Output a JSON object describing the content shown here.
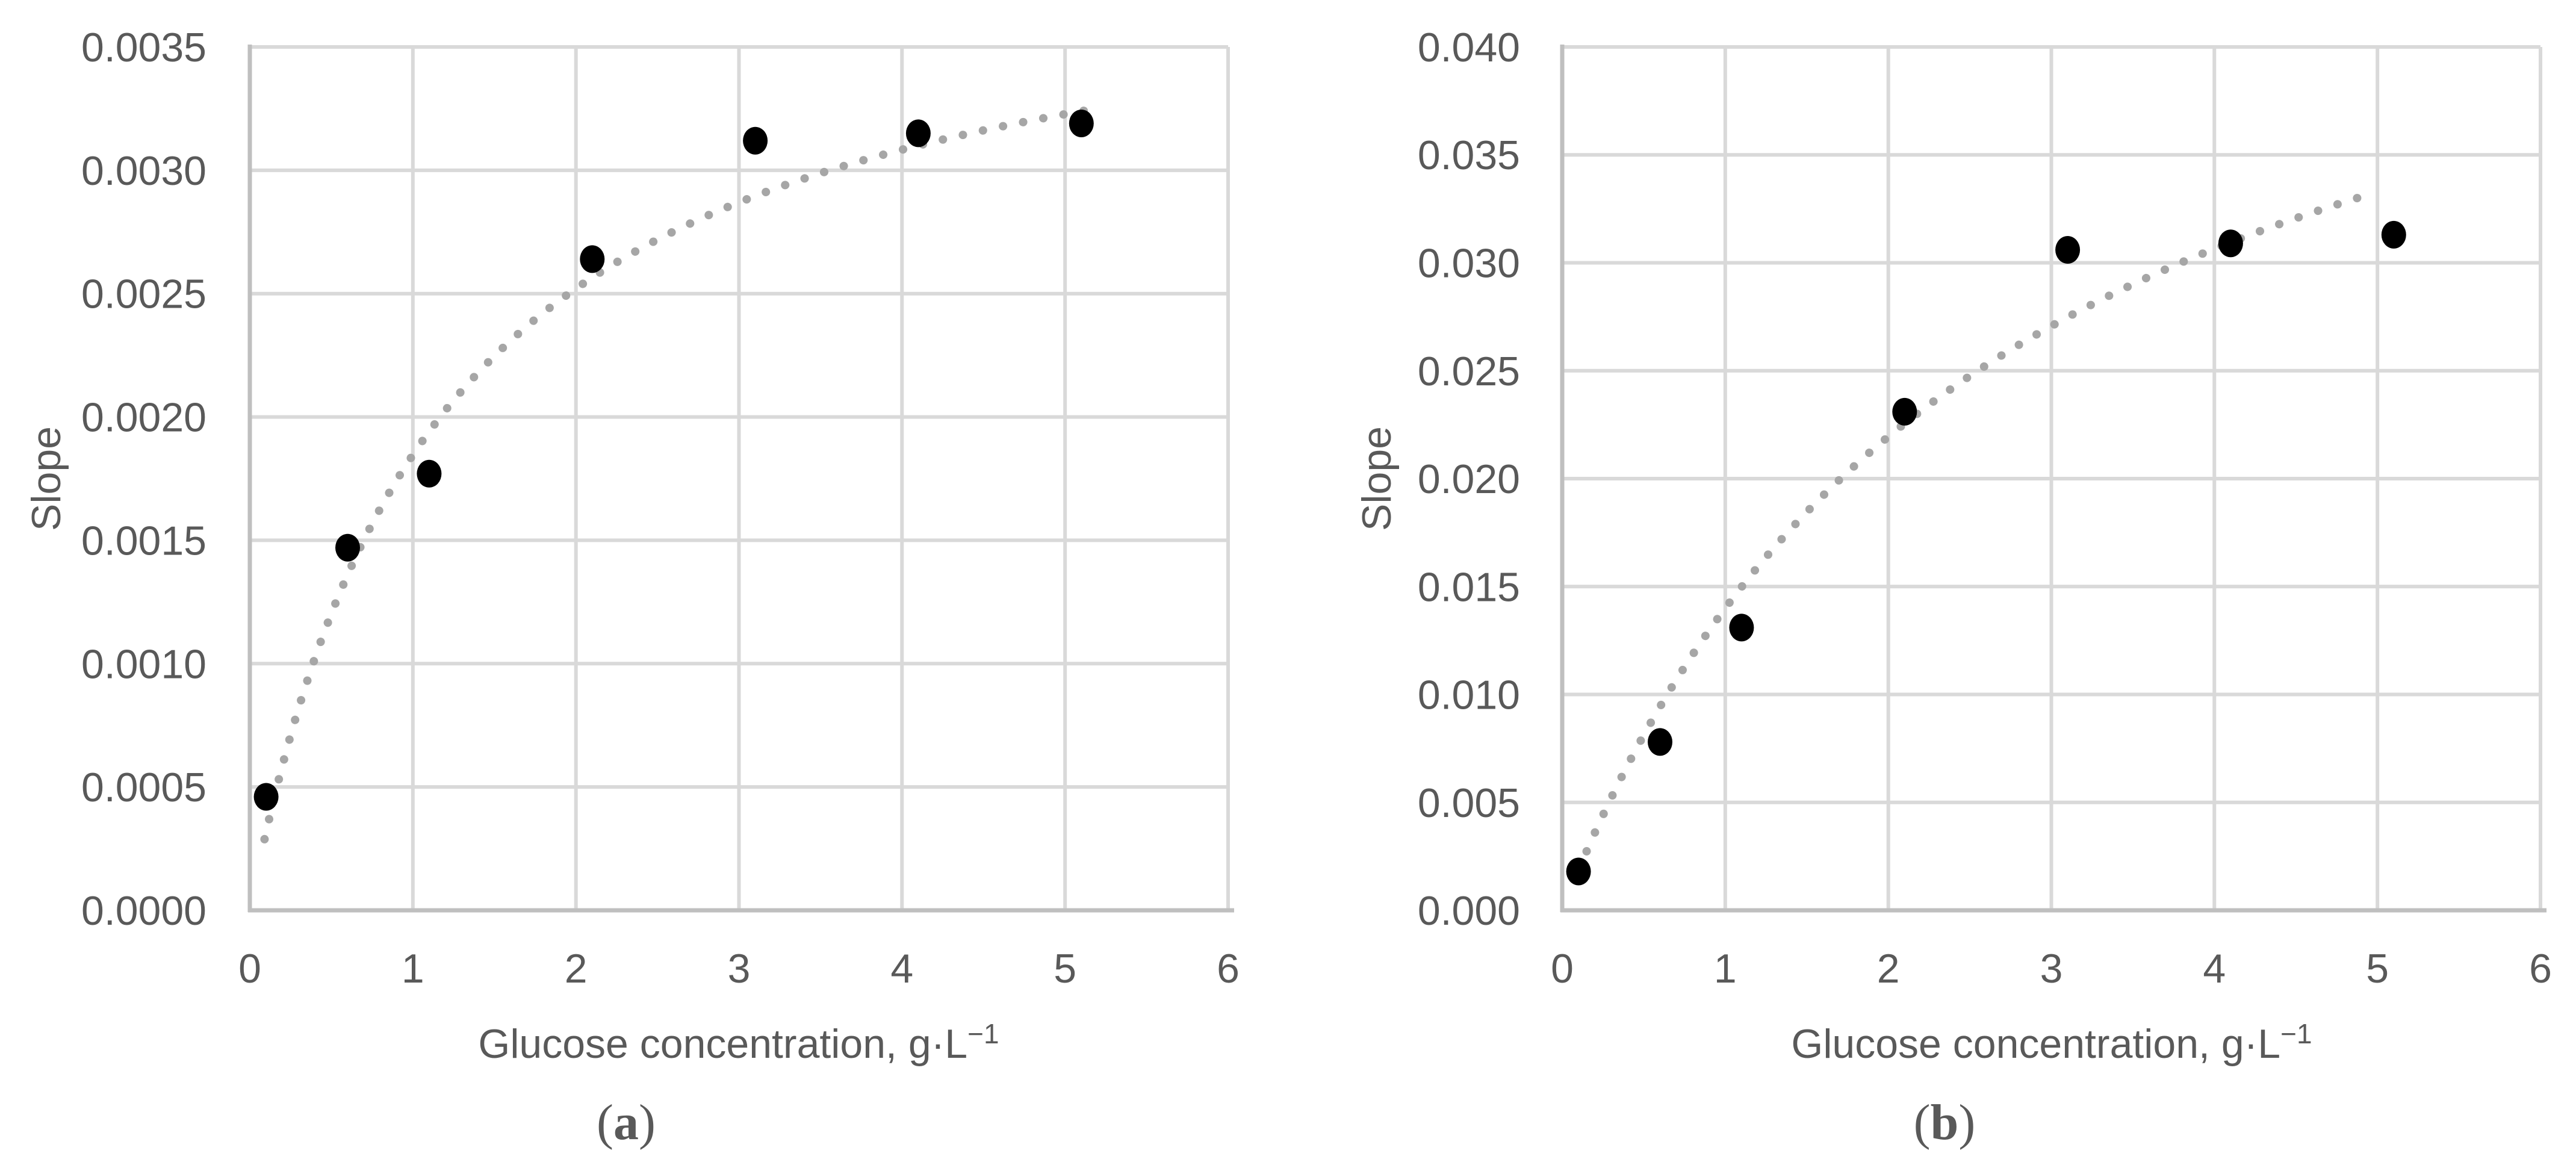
{
  "figure": {
    "background": "#ffffff",
    "colors": {
      "text": "#595959",
      "gridline": "#d9d9d9",
      "axis_line": "#bfbfbf",
      "marker": "#000000",
      "trend": "#a6a6a6"
    },
    "panels": [
      {
        "id": "a",
        "label_open": "(",
        "label_letter": "a",
        "label_close": ")",
        "ylabel": "Slope",
        "xlabel_main": "Glucose concentration, g·L",
        "xlabel_sup": "−1",
        "ytick_labels": [
          "0.0000",
          "0.0005",
          "0.0010",
          "0.0015",
          "0.0020",
          "0.0025",
          "0.0030",
          "0.0035"
        ],
        "xtick_labels": [
          "0",
          "1",
          "2",
          "3",
          "4",
          "5",
          "6"
        ]
      },
      {
        "id": "b",
        "label_open": "(",
        "label_letter": "b",
        "label_close": ")",
        "ylabel": "Slope",
        "xlabel_main": "Glucose concentration, g·L",
        "xlabel_sup": "−1",
        "ytick_labels": [
          "0.000",
          "0.005",
          "0.010",
          "0.015",
          "0.020",
          "0.025",
          "0.030",
          "0.035",
          "0.040"
        ],
        "xtick_labels": [
          "0",
          "1",
          "2",
          "3",
          "4",
          "5",
          "6"
        ]
      }
    ]
  },
  "chart_data": [
    {
      "type": "scatter",
      "panel": "a",
      "title": "(a)",
      "xlabel": "Glucose concentration, g·L⁻¹",
      "ylabel": "Slope",
      "xlim": [
        0,
        6
      ],
      "ylim": [
        0,
        0.0035
      ],
      "xticks": [
        0,
        1,
        2,
        3,
        4,
        5,
        6
      ],
      "yticks": [
        0,
        0.0005,
        0.001,
        0.0015,
        0.002,
        0.0025,
        0.003,
        0.0035
      ],
      "grid": true,
      "legend": "none",
      "series": [
        {
          "name": "measured-points",
          "style": "filled-black-circles",
          "x": [
            0.1,
            0.6,
            1.1,
            2.1,
            3.1,
            4.1,
            5.1
          ],
          "y": [
            0.00046,
            0.00147,
            0.00177,
            0.00264,
            0.00312,
            0.00315,
            0.00319
          ]
        },
        {
          "name": "trend-fit",
          "style": "dotted-gray-curve",
          "model": "michaelis-menten",
          "vmax": 0.00397,
          "km": 1.15,
          "x_start": 0.09,
          "x_end": 5.17
        }
      ]
    },
    {
      "type": "scatter",
      "panel": "b",
      "title": "(b)",
      "xlabel": "Glucose concentration, g·L⁻¹",
      "ylabel": "Slope",
      "xlim": [
        0,
        6
      ],
      "ylim": [
        0,
        0.04
      ],
      "xticks": [
        0,
        1,
        2,
        3,
        4,
        5,
        6
      ],
      "yticks": [
        0,
        0.005,
        0.01,
        0.015,
        0.02,
        0.025,
        0.03,
        0.035,
        0.04
      ],
      "grid": true,
      "legend": "none",
      "series": [
        {
          "name": "measured-points",
          "style": "filled-black-circles",
          "x": [
            0.1,
            0.6,
            1.1,
            2.1,
            3.1,
            4.1,
            5.1
          ],
          "y": [
            0.0018,
            0.0078,
            0.0131,
            0.0231,
            0.0306,
            0.0309,
            0.0313
          ]
        },
        {
          "name": "trend-fit",
          "style": "dotted-gray-curve",
          "model": "michaelis-menten",
          "vmax": 0.0508,
          "km": 2.63,
          "x_start": 0.1,
          "x_end": 4.97
        }
      ]
    }
  ]
}
